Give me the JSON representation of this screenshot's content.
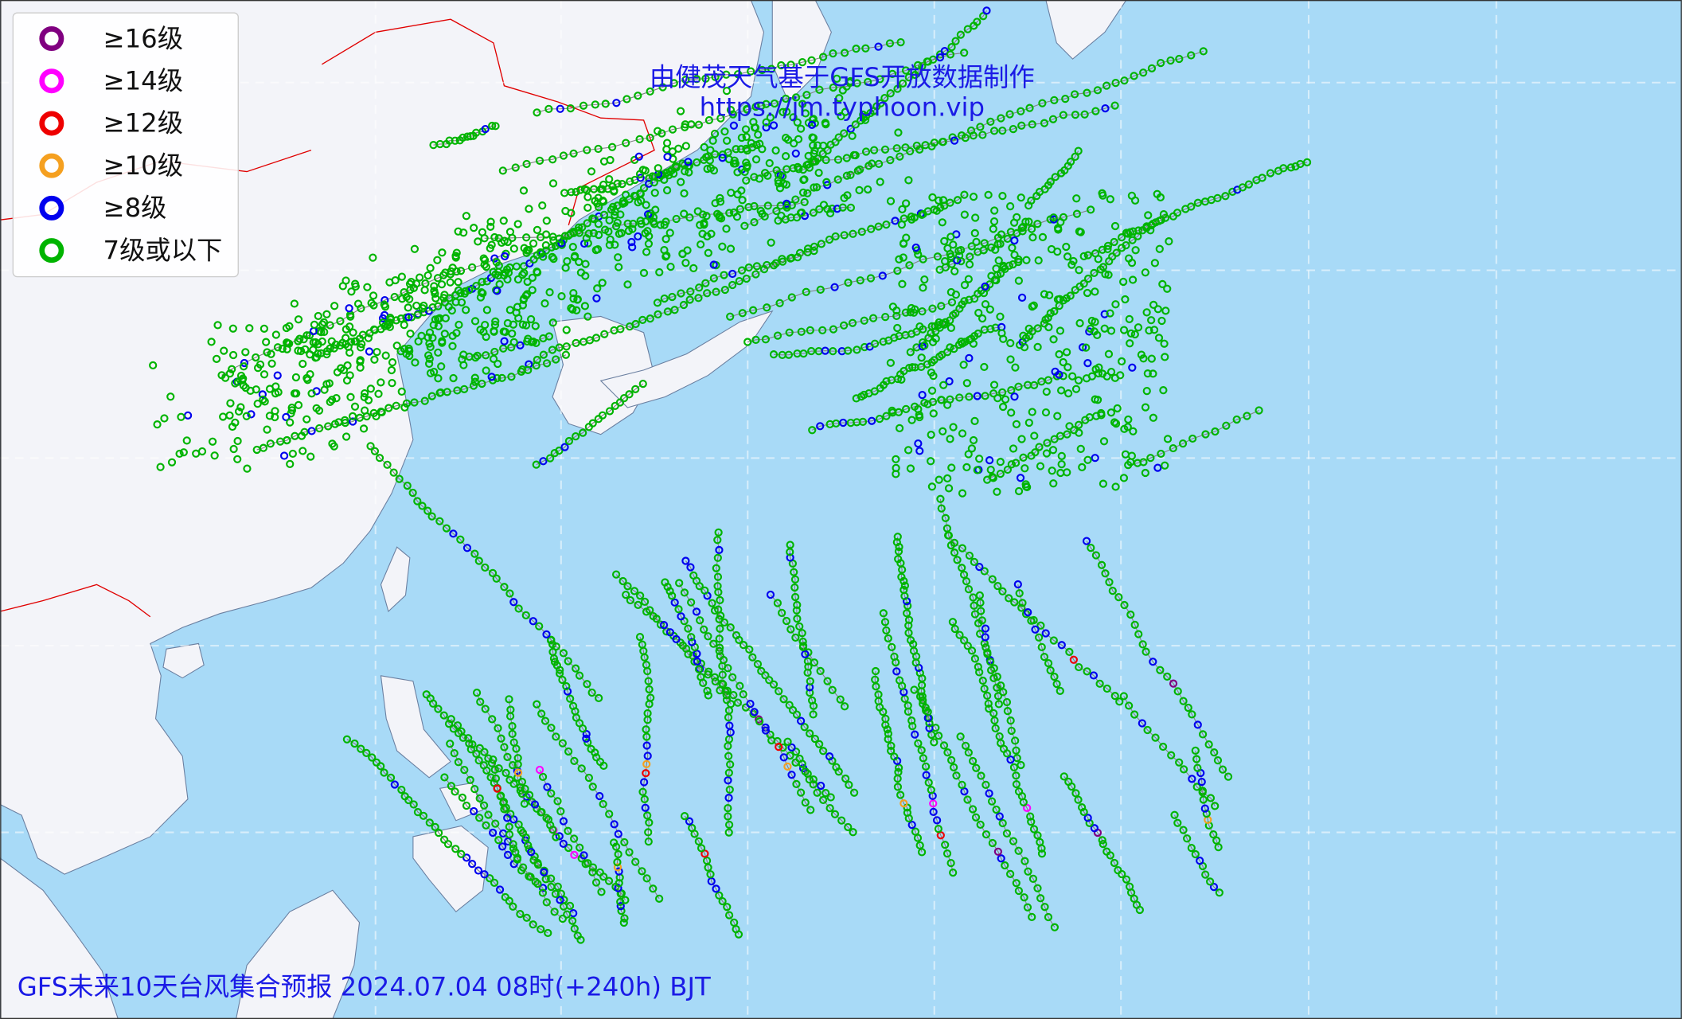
{
  "watermark": {
    "line1": "由健茂天气基于GFS开放数据制作",
    "line2": "https://jm.typhoon.vip"
  },
  "legend": [
    {
      "label": "≥16级",
      "color": "#800080"
    },
    {
      "label": "≥14级",
      "color": "#ff00ff"
    },
    {
      "label": "≥12级",
      "color": "#ee0000"
    },
    {
      "label": "≥10级",
      "color": "#f5a020"
    },
    {
      "label": "≥8级",
      "color": "#0000ee"
    },
    {
      "label": "7级或以下",
      "color": "#00b400"
    }
  ],
  "title": "GFS未来10天台风集合预报 2024.07.04 08时(+240h) BJT"
}
